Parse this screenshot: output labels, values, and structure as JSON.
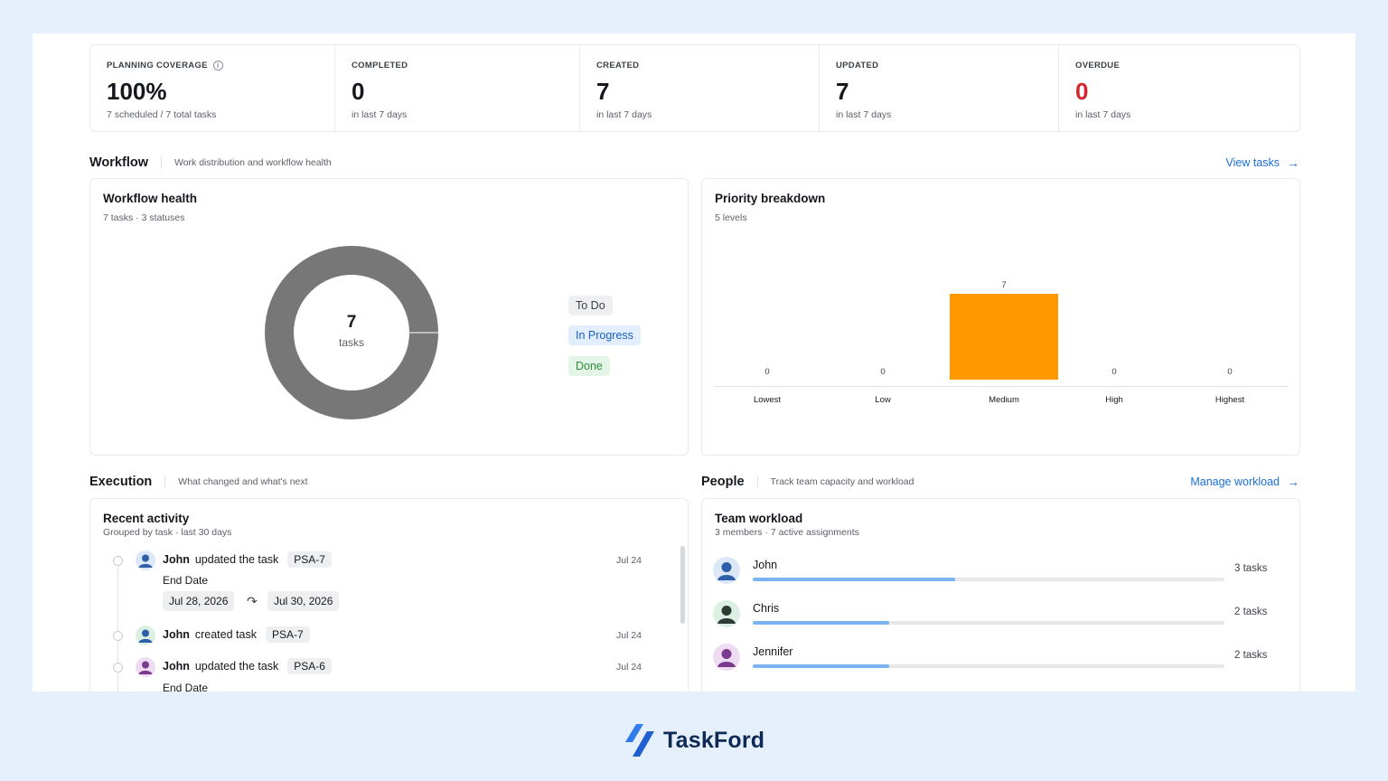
{
  "stats": [
    {
      "label": "PLANNING COVERAGE",
      "value": "100%",
      "sub": "7 scheduled / 7 total tasks",
      "info": true
    },
    {
      "label": "COMPLETED",
      "value": "0",
      "sub": "in last 7 days"
    },
    {
      "label": "CREATED",
      "value": "7",
      "sub": "in last 7 days"
    },
    {
      "label": "UPDATED",
      "value": "7",
      "sub": "in last 7 days"
    },
    {
      "label": "OVERDUE",
      "value": "0",
      "sub": "in last 7 days",
      "alert_color": "#d9232d"
    }
  ],
  "workflow": {
    "title": "Workflow",
    "subtitle": "Work distribution and workflow health",
    "link": "View tasks",
    "health": {
      "title": "Workflow health",
      "subtitle": "7 tasks · 3 statuses",
      "center_value": "7",
      "center_label": "tasks",
      "legend": [
        "To Do",
        "In Progress",
        "Done"
      ]
    },
    "priority": {
      "title": "Priority breakdown",
      "subtitle": "5 levels"
    }
  },
  "chart_data": {
    "type": "bar",
    "categories": [
      "Lowest",
      "Low",
      "Medium",
      "High",
      "Highest"
    ],
    "values": [
      0,
      0,
      7,
      0,
      0
    ],
    "ylim": [
      0,
      7
    ],
    "color": "#fe9800",
    "title": "Priority breakdown",
    "xlabel": "",
    "ylabel": ""
  },
  "execution": {
    "title": "Execution",
    "subtitle": "What changed and what's next",
    "card_title": "Recent activity",
    "card_subtitle": "Grouped by task · last 30 days",
    "items": [
      {
        "user": "John",
        "action": "updated the task",
        "task": "PSA-7",
        "date": "Jul 24",
        "field": "End Date",
        "from": "Jul 28, 2026",
        "to": "Jul 30, 2026"
      },
      {
        "user": "John",
        "action": "created task",
        "task": "PSA-7",
        "date": "Jul 24"
      },
      {
        "user": "John",
        "action": "updated the task",
        "task": "PSA-6",
        "date": "Jul 24",
        "field": "End Date"
      }
    ]
  },
  "people": {
    "title": "People",
    "subtitle": "Track team capacity and workload",
    "link": "Manage workload",
    "card_title": "Team workload",
    "card_subtitle": "3 members · 7 active assignments",
    "members": [
      {
        "name": "John",
        "count": "3 tasks",
        "share": 0.43,
        "color": "#2e5fa8",
        "bg": "#dce8f8"
      },
      {
        "name": "Chris",
        "count": "2 tasks",
        "share": 0.29,
        "color": "#2d3b36",
        "bg": "#dcefe3"
      },
      {
        "name": "Jennifer",
        "count": "2 tasks",
        "share": 0.29,
        "color": "#7a3b8f",
        "bg": "#efdcf3"
      }
    ]
  },
  "brand": {
    "name": "TaskFord"
  }
}
